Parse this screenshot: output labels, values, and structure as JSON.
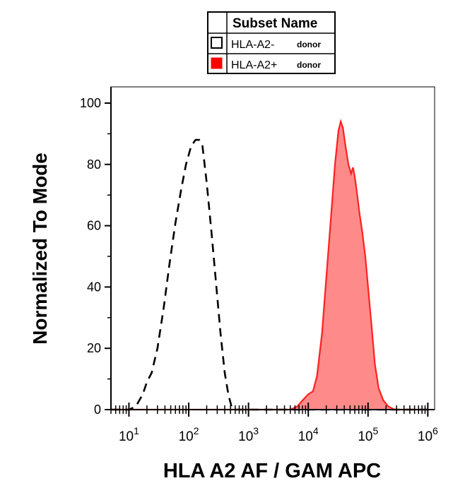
{
  "chart_data": {
    "type": "area",
    "xlabel": "HLA  A2  AF / GAM APC",
    "ylabel": "Normalized To Mode",
    "x_scale": "log",
    "xlim": [
      5,
      1300000
    ],
    "ylim": [
      0,
      100
    ],
    "y_ticks": [
      "0",
      "20",
      "40",
      "60",
      "80",
      "100"
    ],
    "x_ticks": [
      {
        "base": "10",
        "exp": "1",
        "value": 10
      },
      {
        "base": "10",
        "exp": "2",
        "value": 100
      },
      {
        "base": "10",
        "exp": "3",
        "value": 1000
      },
      {
        "base": "10",
        "exp": "4",
        "value": 10000
      },
      {
        "base": "10",
        "exp": "5",
        "value": 100000
      },
      {
        "base": "10",
        "exp": "6",
        "value": 1000000
      }
    ],
    "legend": {
      "header": "Subset Name",
      "placement": "top",
      "entries": [
        {
          "label": "HLA-A2-",
          "sublabel": "donor",
          "style": "dashed-black-outline",
          "swatch_color": "#ffffff"
        },
        {
          "label": "HLA-A2+",
          "sublabel": "donor",
          "style": "red-filled",
          "swatch_color": "#ff0000"
        }
      ]
    },
    "series": [
      {
        "name": "HLA-A2-",
        "style": "dashed",
        "stroke": "#000000",
        "fill": "none",
        "points": [
          [
            5,
            0
          ],
          [
            10,
            0
          ],
          [
            13,
            1
          ],
          [
            17,
            5
          ],
          [
            20,
            9
          ],
          [
            24,
            12
          ],
          [
            30,
            20
          ],
          [
            38,
            33
          ],
          [
            48,
            48
          ],
          [
            60,
            61
          ],
          [
            75,
            72
          ],
          [
            90,
            80
          ],
          [
            110,
            86
          ],
          [
            130,
            88
          ],
          [
            150,
            88
          ],
          [
            170,
            86
          ],
          [
            200,
            74
          ],
          [
            240,
            58
          ],
          [
            290,
            40
          ],
          [
            340,
            25
          ],
          [
            400,
            12
          ],
          [
            460,
            5
          ],
          [
            520,
            1
          ],
          [
            600,
            0
          ],
          [
            1000000,
            0
          ]
        ]
      },
      {
        "name": "HLA-A2+",
        "style": "solid-fill",
        "stroke": "#ff2020",
        "fill": "#ff8a8a",
        "points": [
          [
            5,
            0
          ],
          [
            5000,
            0
          ],
          [
            6500,
            1
          ],
          [
            8000,
            3
          ],
          [
            10000,
            5
          ],
          [
            12000,
            6
          ],
          [
            14000,
            11
          ],
          [
            17000,
            25
          ],
          [
            20000,
            43
          ],
          [
            24000,
            63
          ],
          [
            28000,
            80
          ],
          [
            32000,
            91
          ],
          [
            35000,
            94
          ],
          [
            38000,
            92
          ],
          [
            42000,
            86
          ],
          [
            47000,
            80
          ],
          [
            52000,
            77
          ],
          [
            56000,
            79
          ],
          [
            60000,
            76
          ],
          [
            66000,
            70
          ],
          [
            72000,
            64
          ],
          [
            80000,
            58
          ],
          [
            90000,
            50
          ],
          [
            100000,
            40
          ],
          [
            115000,
            27
          ],
          [
            130000,
            15
          ],
          [
            150000,
            7
          ],
          [
            180000,
            3
          ],
          [
            220000,
            1
          ],
          [
            280000,
            0
          ],
          [
            1000000,
            0
          ]
        ]
      }
    ],
    "grid": false
  }
}
